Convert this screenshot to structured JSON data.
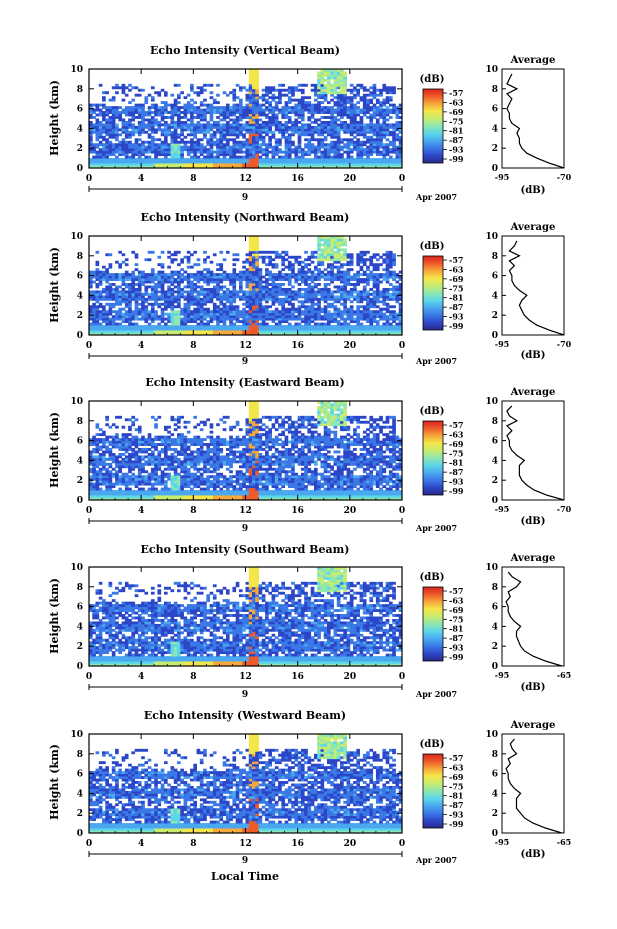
{
  "chart_data": [
    {
      "type": "heatmap",
      "title": "Echo Intensity (Vertical Beam)",
      "ylabel": "Height (km)",
      "x_ticks": [
        "0",
        "4",
        "8",
        "12",
        "16",
        "20",
        "0"
      ],
      "y_ticks": [
        "0",
        "2",
        "4",
        "6",
        "8",
        "10"
      ],
      "xlim": [
        0,
        24
      ],
      "ylim": [
        0,
        10
      ],
      "date_label": "9",
      "month_label": "Apr 2007",
      "colorbar_unit": "(dB)",
      "colorbar_ticks": [
        "-57",
        "-63",
        "-69",
        "-75",
        "-81",
        "-87",
        "-93",
        "-99"
      ],
      "profile": {
        "title": "Average",
        "xlabel": "(dB)",
        "x_ticks": [
          "-95",
          "-70"
        ],
        "y_ticks": [
          "0",
          "2",
          "4",
          "6",
          "8",
          "10"
        ],
        "xlim": [
          -95,
          -70
        ],
        "heights": [
          0,
          0.5,
          1,
          1.5,
          2,
          2.5,
          3,
          3.5,
          4,
          4.5,
          5,
          5.5,
          6,
          6.5,
          7,
          7.5,
          8,
          8.5,
          9,
          9.5
        ],
        "values": [
          -70,
          -76,
          -81,
          -85,
          -87,
          -88,
          -88,
          -89,
          -88,
          -91,
          -92,
          -92,
          -93,
          -92,
          -91,
          -93,
          -89,
          -93,
          -92,
          -91
        ]
      }
    },
    {
      "type": "heatmap",
      "title": "Echo Intensity (Northward Beam)",
      "ylabel": "Height (km)",
      "x_ticks": [
        "0",
        "4",
        "8",
        "12",
        "16",
        "20",
        "0"
      ],
      "y_ticks": [
        "0",
        "2",
        "4",
        "6",
        "8",
        "10"
      ],
      "xlim": [
        0,
        24
      ],
      "ylim": [
        0,
        10
      ],
      "date_label": "9",
      "month_label": "Apr 2007",
      "colorbar_unit": "(dB)",
      "colorbar_ticks": [
        "-57",
        "-63",
        "-69",
        "-75",
        "-81",
        "-87",
        "-93",
        "-99"
      ],
      "profile": {
        "title": "Average",
        "xlabel": "(dB)",
        "x_ticks": [
          "-95",
          "-70"
        ],
        "y_ticks": [
          "0",
          "2",
          "4",
          "6",
          "8",
          "10"
        ],
        "xlim": [
          -95,
          -70
        ],
        "heights": [
          0,
          0.5,
          1,
          1.5,
          2,
          2.5,
          3,
          3.5,
          4,
          4.5,
          5,
          5.5,
          6,
          6.5,
          7,
          7.5,
          8,
          8.5,
          9,
          9.5
        ],
        "values": [
          -70,
          -76,
          -81,
          -84,
          -86,
          -87,
          -88,
          -87,
          -85,
          -88,
          -90,
          -91,
          -91,
          -92,
          -90,
          -92,
          -88,
          -92,
          -90,
          -89
        ]
      }
    },
    {
      "type": "heatmap",
      "title": "Echo Intensity (Eastward Beam)",
      "ylabel": "Height (km)",
      "x_ticks": [
        "0",
        "4",
        "8",
        "12",
        "16",
        "20",
        "0"
      ],
      "y_ticks": [
        "0",
        "2",
        "4",
        "6",
        "8",
        "10"
      ],
      "xlim": [
        0,
        24
      ],
      "ylim": [
        0,
        10
      ],
      "date_label": "9",
      "month_label": "Apr 2007",
      "colorbar_unit": "(dB)",
      "colorbar_ticks": [
        "-57",
        "-63",
        "-69",
        "-75",
        "-81",
        "-87",
        "-93",
        "-99"
      ],
      "profile": {
        "title": "Average",
        "xlabel": "(dB)",
        "x_ticks": [
          "-95",
          "-70"
        ],
        "y_ticks": [
          "0",
          "2",
          "4",
          "6",
          "8",
          "10"
        ],
        "xlim": [
          -95,
          -70
        ],
        "heights": [
          0,
          0.5,
          1,
          1.5,
          2,
          2.5,
          3,
          3.5,
          4,
          4.5,
          5,
          5.5,
          6,
          6.5,
          7,
          7.5,
          8,
          8.5,
          9,
          9.5
        ],
        "values": [
          -70,
          -77,
          -82,
          -85,
          -87,
          -88,
          -88,
          -88,
          -86,
          -89,
          -91,
          -92,
          -92,
          -93,
          -91,
          -93,
          -89,
          -92,
          -93,
          -91
        ]
      }
    },
    {
      "type": "heatmap",
      "title": "Echo Intensity (Southward Beam)",
      "ylabel": "Height (km)",
      "x_ticks": [
        "0",
        "4",
        "8",
        "12",
        "16",
        "20",
        "0"
      ],
      "y_ticks": [
        "0",
        "2",
        "4",
        "6",
        "8",
        "10"
      ],
      "xlim": [
        0,
        24
      ],
      "ylim": [
        0,
        10
      ],
      "date_label": "9",
      "month_label": "Apr 2007",
      "colorbar_unit": "(dB)",
      "colorbar_ticks": [
        "-57",
        "-63",
        "-69",
        "-75",
        "-81",
        "-87",
        "-93",
        "-99"
      ],
      "profile": {
        "title": "Average",
        "xlabel": "(dB)",
        "x_ticks": [
          "-95",
          "-65"
        ],
        "y_ticks": [
          "0",
          "2",
          "4",
          "6",
          "8",
          "10"
        ],
        "xlim": [
          -95,
          -65
        ],
        "heights": [
          0,
          0.5,
          1,
          1.5,
          2,
          2.5,
          3,
          3.5,
          4,
          4.5,
          5,
          5.5,
          6,
          6.5,
          7,
          7.5,
          8,
          8.5,
          9,
          9.5
        ],
        "values": [
          -66,
          -74,
          -80,
          -84,
          -86,
          -87,
          -88,
          -88,
          -86,
          -89,
          -91,
          -92,
          -92,
          -93,
          -91,
          -92,
          -88,
          -86,
          -90,
          -92
        ]
      }
    },
    {
      "type": "heatmap",
      "title": "Echo Intensity (Westward Beam)",
      "ylabel": "Height (km)",
      "x_ticks": [
        "0",
        "4",
        "8",
        "12",
        "16",
        "20",
        "0"
      ],
      "y_ticks": [
        "0",
        "2",
        "4",
        "6",
        "8",
        "10"
      ],
      "xlim": [
        0,
        24
      ],
      "ylim": [
        0,
        10
      ],
      "date_label": "9",
      "month_label": "Apr 2007",
      "colorbar_unit": "(dB)",
      "colorbar_ticks": [
        "-57",
        "-63",
        "-69",
        "-75",
        "-81",
        "-87",
        "-93",
        "-99"
      ],
      "profile": {
        "title": "Average",
        "xlabel": "(dB)",
        "x_ticks": [
          "-95",
          "-65"
        ],
        "y_ticks": [
          "0",
          "2",
          "4",
          "6",
          "8",
          "10"
        ],
        "xlim": [
          -95,
          -65
        ],
        "heights": [
          0,
          0.5,
          1,
          1.5,
          2,
          2.5,
          3,
          3.5,
          4,
          4.5,
          5,
          5.5,
          6,
          6.5,
          7,
          7.5,
          8,
          8.5,
          9,
          9.5
        ],
        "values": [
          -66,
          -74,
          -80,
          -84,
          -86,
          -88,
          -88,
          -88,
          -86,
          -89,
          -91,
          -92,
          -92,
          -93,
          -91,
          -92,
          -88,
          -90,
          -91,
          -89
        ]
      }
    }
  ],
  "bottom_xlabel": "Local Time",
  "colormap": [
    "#2a2a8a",
    "#2c46c8",
    "#3a78e6",
    "#4aa8f0",
    "#5cd6e8",
    "#8ee6b0",
    "#c8ec70",
    "#f4e64a",
    "#f6a83a",
    "#ee5a2a",
    "#d8261e"
  ]
}
